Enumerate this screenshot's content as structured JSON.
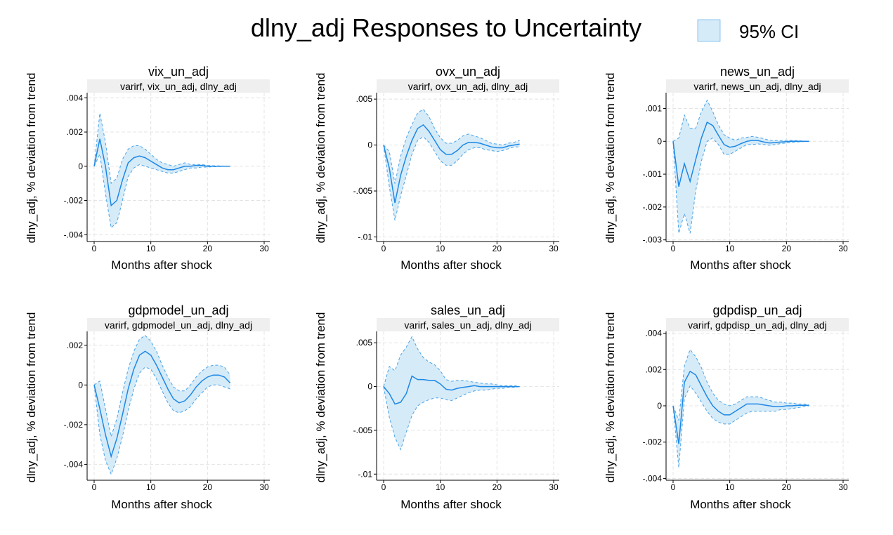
{
  "title": "dlny_adj Responses to Uncertainty",
  "legend": {
    "label": "95% CI",
    "placement": "top-right"
  },
  "colors": {
    "line": "#1e88e5",
    "band_fill": "#d6ebf8",
    "band_edge": "#4aa3e8",
    "strip": "#efefef",
    "grid": "#e4e4e4"
  },
  "chart_data": [
    {
      "type": "line",
      "title": "vix_un_adj",
      "subtitle": "varirf, vix_un_adj, dlny_adj",
      "xlabel": "Months after shock",
      "ylabel": "dlny_adj, % deviation from trend",
      "xlim": [
        0,
        30
      ],
      "ylim": [
        -0.0044,
        0.0043
      ],
      "xticks": [
        0,
        10,
        20,
        30
      ],
      "xtick_labels": [
        "0",
        "10",
        "20",
        "30"
      ],
      "yticks": [
        -0.004,
        -0.002,
        0,
        0.002,
        0.004
      ],
      "ytick_labels": [
        "-.004",
        "-.002",
        "0",
        ".002",
        ".004"
      ],
      "x": [
        0,
        1,
        2,
        3,
        4,
        5,
        6,
        7,
        8,
        9,
        10,
        11,
        12,
        13,
        14,
        15,
        16,
        17,
        18,
        19,
        20,
        21,
        22,
        23,
        24
      ],
      "series": [
        {
          "role": "irf",
          "values": [
            0,
            0.0016,
            0,
            -0.0023,
            -0.002,
            -0.0008,
            0.0002,
            0.0005,
            0.0006,
            0.0005,
            0.0003,
            0.0001,
            -0.0001,
            -0.0002,
            -0.0002,
            -0.0001,
            0,
            0,
            5e-05,
            5e-05,
            0,
            0,
            0,
            0,
            0
          ]
        },
        {
          "role": "lower",
          "values": [
            0,
            0.0007,
            -0.0016,
            -0.0036,
            -0.0033,
            -0.002,
            -0.0006,
            -0.0001,
            0.0001,
            0,
            -0.0001,
            -0.0002,
            -0.0003,
            -0.0004,
            -0.0004,
            -0.0003,
            -0.0002,
            -0.0001,
            -0.0001,
            -5e-05,
            -5e-05,
            -3e-05,
            -2e-05,
            -1e-05,
            0
          ]
        },
        {
          "role": "upper",
          "values": [
            0,
            0.0031,
            0.0014,
            -0.001,
            -0.0007,
            0.0004,
            0.001,
            0.0012,
            0.0012,
            0.001,
            0.0007,
            0.0004,
            0.0002,
            0.0001,
            0,
            0.0001,
            0.0002,
            0.0001,
            0.0001,
            0.0001,
            5e-05,
            3e-05,
            2e-05,
            1e-05,
            0
          ]
        }
      ]
    },
    {
      "type": "line",
      "title": "ovx_un_adj",
      "subtitle": "varirf, ovx_un_adj, dlny_adj",
      "xlabel": "Months after shock",
      "ylabel": "dlny_adj, % deviation from trend",
      "xlim": [
        0,
        30
      ],
      "ylim": [
        -0.0105,
        0.0057
      ],
      "xticks": [
        0,
        10,
        20,
        30
      ],
      "xtick_labels": [
        "0",
        "10",
        "20",
        "30"
      ],
      "yticks": [
        -0.01,
        -0.005,
        0,
        0.005
      ],
      "ytick_labels": [
        "-.01",
        "-.005",
        "0",
        ".005"
      ],
      "x": [
        0,
        1,
        2,
        3,
        4,
        5,
        6,
        7,
        8,
        9,
        10,
        11,
        12,
        13,
        14,
        15,
        16,
        17,
        18,
        19,
        20,
        21,
        22,
        23,
        24
      ],
      "series": [
        {
          "role": "irf",
          "values": [
            0,
            -0.0025,
            -0.0063,
            -0.0033,
            -0.0012,
            0.0005,
            0.0018,
            0.0022,
            0.0015,
            0.0005,
            -0.0005,
            -0.001,
            -0.001,
            -0.0006,
            0,
            0.0003,
            0.0003,
            0.0002,
            0,
            -0.0002,
            -0.0003,
            -0.0003,
            -0.0001,
            0,
            0.0001
          ]
        },
        {
          "role": "lower",
          "values": [
            0,
            -0.0045,
            -0.0082,
            -0.0055,
            -0.0033,
            -0.001,
            0.0005,
            0.0009,
            0.0003,
            -0.0007,
            -0.0017,
            -0.0022,
            -0.0022,
            -0.0017,
            -0.001,
            -0.0005,
            -0.0003,
            -0.0003,
            -0.0005,
            -0.0006,
            -0.0007,
            -0.0006,
            -0.0004,
            -0.0002,
            -0.0002
          ]
        },
        {
          "role": "upper",
          "values": [
            0,
            -0.0007,
            -0.0042,
            -0.0012,
            0.0008,
            0.0022,
            0.0035,
            0.0039,
            0.0031,
            0.0018,
            0.0008,
            0.0002,
            0.0002,
            0.0005,
            0.001,
            0.0012,
            0.001,
            0.0008,
            0.0005,
            0.0002,
            0.0001,
            0,
            0.0002,
            0.0003,
            0.0005
          ]
        }
      ]
    },
    {
      "type": "line",
      "title": "news_un_adj",
      "subtitle": "varirf, news_un_adj, dlny_adj",
      "xlabel": "Months after shock",
      "ylabel": "dlny_adj, % deviation from trend",
      "xlim": [
        0,
        30
      ],
      "ylim": [
        -0.00305,
        0.00148
      ],
      "xticks": [
        0,
        10,
        20,
        30
      ],
      "xtick_labels": [
        "0",
        "10",
        "20",
        "30"
      ],
      "yticks": [
        -0.003,
        -0.002,
        -0.001,
        0,
        0.001
      ],
      "ytick_labels": [
        "-.003",
        "-.002",
        "-.001",
        "0",
        ".001"
      ],
      "x": [
        0,
        1,
        2,
        3,
        4,
        5,
        6,
        7,
        8,
        9,
        10,
        11,
        12,
        13,
        14,
        15,
        16,
        17,
        18,
        19,
        20,
        21,
        22,
        23,
        24
      ],
      "series": [
        {
          "role": "irf",
          "values": [
            0,
            -0.00138,
            -0.00068,
            -0.00122,
            -0.00055,
            0.0001,
            0.00058,
            0.00048,
            0.00018,
            -0.0001,
            -0.00018,
            -0.00015,
            -7e-05,
            0,
            3e-05,
            2e-05,
            -2e-05,
            -5e-05,
            -4e-05,
            -2e-05,
            -1e-05,
            0,
            0,
            0,
            0
          ]
        },
        {
          "role": "lower",
          "values": [
            0,
            -0.0028,
            -0.0022,
            -0.0028,
            -0.0015,
            -0.0006,
            0,
            0.0001,
            -0.0001,
            -0.0004,
            -0.0004,
            -0.0003,
            -0.0002,
            -0.0001,
            -0.0001,
            -8e-05,
            -0.0001,
            -0.00012,
            -0.0001,
            -7e-05,
            -5e-05,
            -3e-05,
            -2e-05,
            -1e-05,
            0
          ]
        },
        {
          "role": "upper",
          "values": [
            0,
            0.0001,
            0.0008,
            0.0004,
            0.0004,
            0.0009,
            0.00125,
            0.0009,
            0.0005,
            0.0002,
            0.0001,
            3e-05,
            0.0001,
            0.00012,
            0.00015,
            0.00012,
            8e-05,
            3e-05,
            2e-05,
            2e-05,
            3e-05,
            3e-05,
            2e-05,
            1e-05,
            0
          ]
        }
      ]
    },
    {
      "type": "line",
      "title": "gdpmodel_un_adj",
      "subtitle": "varirf, gdpmodel_un_adj, dlny_adj",
      "xlabel": "Months after shock",
      "ylabel": "dlny_adj, % deviation from trend",
      "xlim": [
        0,
        30
      ],
      "ylim": [
        -0.0048,
        0.0027
      ],
      "xticks": [
        0,
        10,
        20,
        30
      ],
      "xtick_labels": [
        "0",
        "10",
        "20",
        "30"
      ],
      "yticks": [
        -0.004,
        -0.002,
        0,
        0.002
      ],
      "ytick_labels": [
        "-.004",
        "-.002",
        "0",
        ".002"
      ],
      "x": [
        0,
        1,
        2,
        3,
        4,
        5,
        6,
        7,
        8,
        9,
        10,
        11,
        12,
        13,
        14,
        15,
        16,
        17,
        18,
        19,
        20,
        21,
        22,
        23,
        24
      ],
      "series": [
        {
          "role": "irf",
          "values": [
            0,
            -0.0012,
            -0.0025,
            -0.0036,
            -0.0027,
            -0.0015,
            -0.0002,
            0.0008,
            0.0015,
            0.0017,
            0.0015,
            0.001,
            0.0004,
            -0.0002,
            -0.0007,
            -0.0009,
            -0.0008,
            -0.0005,
            -0.0001,
            0.0002,
            0.0004,
            0.0005,
            0.0005,
            0.0004,
            0.0001
          ]
        },
        {
          "role": "lower",
          "values": [
            0,
            -0.0025,
            -0.0038,
            -0.0045,
            -0.0037,
            -0.0026,
            -0.0013,
            -0.0002,
            0.0006,
            0.0009,
            0.0008,
            0.0003,
            -0.0003,
            -0.0009,
            -0.0013,
            -0.0014,
            -0.0013,
            -0.0011,
            -0.0007,
            -0.0004,
            -0.0001,
            0,
            0,
            -0.0001,
            -0.0002
          ]
        },
        {
          "role": "upper",
          "values": [
            0,
            0.0002,
            -0.0012,
            -0.0026,
            -0.0017,
            -0.0004,
            0.0008,
            0.0017,
            0.0023,
            0.0025,
            0.0022,
            0.0017,
            0.001,
            0.0004,
            -0.0001,
            -0.0003,
            -0.0003,
            0,
            0.0004,
            0.0007,
            0.0009,
            0.001,
            0.001,
            0.0009,
            0.0005
          ]
        }
      ]
    },
    {
      "type": "line",
      "title": "sales_un_adj",
      "subtitle": "varirf, sales_un_adj, dlny_adj",
      "xlabel": "Months after shock",
      "ylabel": "dlny_adj, % deviation from trend",
      "xlim": [
        0,
        30
      ],
      "ylim": [
        -0.0107,
        0.0063
      ],
      "xticks": [
        0,
        10,
        20,
        30
      ],
      "xtick_labels": [
        "0",
        "10",
        "20",
        "30"
      ],
      "yticks": [
        -0.01,
        -0.005,
        0,
        0.005
      ],
      "ytick_labels": [
        "-.01",
        "-.005",
        "0",
        ".005"
      ],
      "x": [
        0,
        1,
        2,
        3,
        4,
        5,
        6,
        7,
        8,
        9,
        10,
        11,
        12,
        13,
        14,
        15,
        16,
        17,
        18,
        19,
        20,
        21,
        22,
        23,
        24
      ],
      "series": [
        {
          "role": "irf",
          "values": [
            0,
            -0.0008,
            -0.002,
            -0.0018,
            -0.0008,
            0.0012,
            0.0008,
            0.0008,
            0.0007,
            0.0007,
            0.0003,
            -0.0003,
            -0.0004,
            -0.0002,
            -0.0001,
            0,
            0.0001,
            0,
            0,
            0,
            0,
            0,
            0,
            0,
            0
          ]
        },
        {
          "role": "lower",
          "values": [
            0,
            -0.0035,
            -0.0058,
            -0.0072,
            -0.0052,
            -0.0033,
            -0.0022,
            -0.0018,
            -0.0015,
            -0.0013,
            -0.0013,
            -0.0015,
            -0.0016,
            -0.0013,
            -0.001,
            -0.0007,
            -0.0005,
            -0.0004,
            -0.0004,
            -0.0003,
            -0.0002,
            -0.0002,
            -0.0001,
            -0.0001,
            0
          ]
        },
        {
          "role": "upper",
          "values": [
            0,
            0.0023,
            0.0018,
            0.0036,
            0.0045,
            0.0057,
            0.0043,
            0.0033,
            0.0028,
            0.0025,
            0.0018,
            0.0008,
            0.0006,
            0.0007,
            0.0007,
            0.0006,
            0.0005,
            0.0004,
            0.0003,
            0.0003,
            0.0002,
            0.0001,
            0.0001,
            0.0001,
            0
          ]
        }
      ]
    },
    {
      "type": "line",
      "title": "gdpdisp_un_adj",
      "subtitle": "varirf, gdpdisp_un_adj, dlny_adj",
      "xlabel": "Months after shock",
      "ylabel": "dlny_adj, % deviation from trend",
      "xlim": [
        0,
        30
      ],
      "ylim": [
        -0.0041,
        0.0041
      ],
      "xticks": [
        0,
        10,
        20,
        30
      ],
      "xtick_labels": [
        "0",
        "10",
        "20",
        "30"
      ],
      "yticks": [
        -0.004,
        -0.002,
        0,
        0.002,
        0.004
      ],
      "ytick_labels": [
        "-.004",
        "-.002",
        "0",
        ".002",
        ".004"
      ],
      "x": [
        0,
        1,
        2,
        3,
        4,
        5,
        6,
        7,
        8,
        9,
        10,
        11,
        12,
        13,
        14,
        15,
        16,
        17,
        18,
        19,
        20,
        21,
        22,
        23,
        24
      ],
      "series": [
        {
          "role": "irf",
          "values": [
            0,
            -0.0021,
            0.0013,
            0.0019,
            0.0017,
            0.0011,
            0.0005,
            0,
            -0.0003,
            -0.0005,
            -0.0005,
            -0.0003,
            -0.0001,
            0.0001,
            0.0001,
            0.0001,
            5e-05,
            0,
            -5e-05,
            -5e-05,
            0,
            0,
            3e-05,
            3e-05,
            3e-05
          ]
        },
        {
          "role": "lower",
          "values": [
            0,
            -0.0034,
            0.0004,
            0.0011,
            0.0007,
            0.0002,
            -0.0003,
            -0.0007,
            -0.0009,
            -0.001,
            -0.001,
            -0.0008,
            -0.0006,
            -0.0004,
            -0.0003,
            -0.0003,
            -0.0003,
            -0.0003,
            -0.0003,
            -0.0002,
            -0.0002,
            -0.00015,
            -0.0001,
            -5e-05,
            0
          ]
        },
        {
          "role": "upper",
          "values": [
            0,
            -0.0008,
            0.0022,
            0.0031,
            0.0027,
            0.0021,
            0.0013,
            0.0007,
            0.0003,
            0.0001,
            0,
            0.0001,
            0.0003,
            0.0005,
            0.0005,
            0.0005,
            0.0004,
            0.0003,
            0.0002,
            0.0002,
            0.00015,
            0.00015,
            0.0001,
            0.0001,
            5e-05
          ]
        }
      ]
    }
  ]
}
